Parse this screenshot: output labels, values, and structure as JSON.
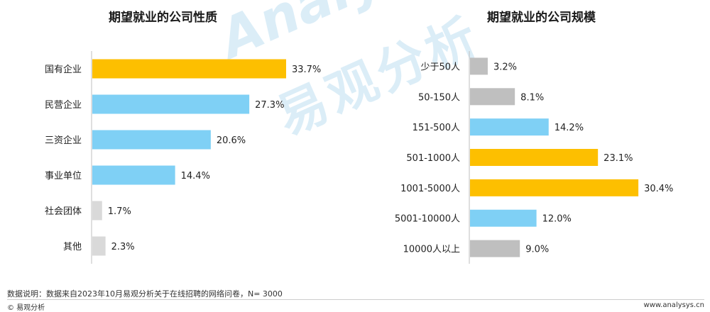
{
  "chart_data": [
    {
      "type": "bar",
      "orientation": "horizontal",
      "title": "期望就业的公司性质",
      "categories": [
        "国有企业",
        "民营企业",
        "三资企业",
        "事业单位",
        "社会团体",
        "其他"
      ],
      "values": [
        33.7,
        27.3,
        20.6,
        14.4,
        1.7,
        2.3
      ],
      "value_labels": [
        "33.7%",
        "27.3%",
        "20.6%",
        "14.4%",
        "1.7%",
        "2.3%"
      ],
      "bar_colors": [
        "#FDBF00",
        "#7FD0F5",
        "#7FD0F5",
        "#7FD0F5",
        "#D9D9D9",
        "#D9D9D9"
      ],
      "xlim": [
        0,
        40
      ],
      "grid": false
    },
    {
      "type": "bar",
      "orientation": "horizontal",
      "title": "期望就业的公司规模",
      "categories": [
        "少于50人",
        "50-150人",
        "151-500人",
        "501-1000人",
        "1001-5000人",
        "5001-10000人",
        "10000人以上"
      ],
      "values": [
        3.2,
        8.1,
        14.2,
        23.1,
        30.4,
        12.0,
        9.0
      ],
      "value_labels": [
        "3.2%",
        "8.1%",
        "14.2%",
        "23.1%",
        "30.4%",
        "12.0%",
        "9.0%"
      ],
      "bar_colors": [
        "#BFBFBF",
        "#BFBFBF",
        "#7FD0F5",
        "#FDBF00",
        "#FDBF00",
        "#7FD0F5",
        "#BFBFBF"
      ],
      "xlim": [
        0,
        35
      ],
      "grid": false
    }
  ],
  "watermark": {
    "en": "Analysys",
    "cn": "易观分析"
  },
  "footer": {
    "note": "数据说明：数据来自2023年10月易观分析关于在线招聘的网络问卷，N= 3000",
    "copyright": "© 易观分析",
    "website": "www.analysys.cn"
  }
}
